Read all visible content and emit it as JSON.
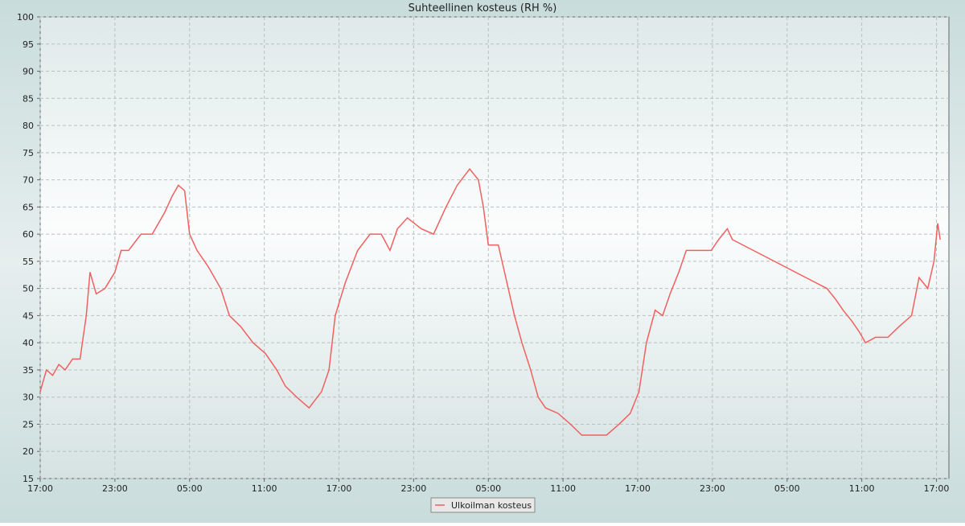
{
  "chart_data": {
    "type": "line",
    "title": "Suhteellinen kosteus (RH %)",
    "x": [
      0,
      0.5,
      1,
      1.5,
      2,
      2.6,
      3.2,
      3.7,
      4.0,
      4.5,
      5.2,
      6.0,
      6.5,
      7.1,
      8.1,
      9.0,
      10.0,
      10.6,
      11.1,
      11.6,
      12.0,
      12.6,
      13.5,
      14.5,
      15.2,
      16.1,
      17.1,
      18.1,
      19.0,
      19.7,
      20.6,
      21.6,
      22.6,
      23.2,
      23.7,
      24.5,
      25.5,
      26.5,
      27.4,
      28.1,
      28.7,
      29.5,
      30.6,
      31.6,
      32.6,
      33.5,
      34.5,
      35.2,
      35.6,
      36.0,
      36.8,
      37.4,
      38.1,
      38.7,
      39.4,
      40.0,
      40.6,
      41.6,
      42.6,
      43.5,
      44.5,
      45.5,
      46.5,
      47.4,
      48.1,
      48.7,
      49.4,
      50.0,
      50.6,
      51.3,
      51.9,
      52.9,
      53.9,
      54.5,
      55.2,
      55.6,
      63.2,
      63.9,
      64.5,
      65.2,
      65.8,
      66.3,
      67.1,
      68.1,
      69.0,
      70.0,
      70.6,
      71.3,
      71.8,
      72.1,
      72.3
    ],
    "series": [
      {
        "name": "Ulkoilman kosteus",
        "color": "#f06060",
        "values": [
          31,
          35,
          34,
          36,
          35,
          37,
          37,
          45,
          53,
          49,
          50,
          53,
          57,
          57,
          60,
          60,
          64,
          67,
          69,
          68,
          60,
          57,
          54,
          50,
          45,
          43,
          40,
          38,
          35,
          32,
          30,
          28,
          31,
          35,
          45,
          51,
          57,
          60,
          60,
          57,
          61,
          63,
          61,
          60,
          65,
          69,
          72,
          70,
          65,
          58,
          58,
          52,
          45,
          40,
          35,
          30,
          28,
          27,
          25,
          23,
          23,
          23,
          25,
          27,
          31,
          40,
          46,
          45,
          49,
          53,
          57,
          57,
          57,
          59,
          61,
          59,
          50,
          48,
          46,
          44,
          42,
          40,
          41,
          41,
          43,
          45,
          52,
          50,
          55,
          62,
          59
        ]
      }
    ],
    "xlim": [
      0,
      73
    ],
    "xticks": [
      {
        "value": 0,
        "label": "17:00"
      },
      {
        "value": 6,
        "label": "23:00"
      },
      {
        "value": 12,
        "label": "05:00"
      },
      {
        "value": 18,
        "label": "11:00"
      },
      {
        "value": 24,
        "label": "17:00"
      },
      {
        "value": 30,
        "label": "23:00"
      },
      {
        "value": 36,
        "label": "05:00"
      },
      {
        "value": 42,
        "label": "11:00"
      },
      {
        "value": 48,
        "label": "17:00"
      },
      {
        "value": 54,
        "label": "23:00"
      },
      {
        "value": 60,
        "label": "05:00"
      },
      {
        "value": 66,
        "label": "11:00"
      },
      {
        "value": 72,
        "label": "17:00"
      }
    ],
    "ylim": [
      15,
      100
    ],
    "yticks": [
      15,
      20,
      25,
      30,
      35,
      40,
      45,
      50,
      55,
      60,
      65,
      70,
      75,
      80,
      85,
      90,
      95,
      100
    ],
    "grid": true
  }
}
